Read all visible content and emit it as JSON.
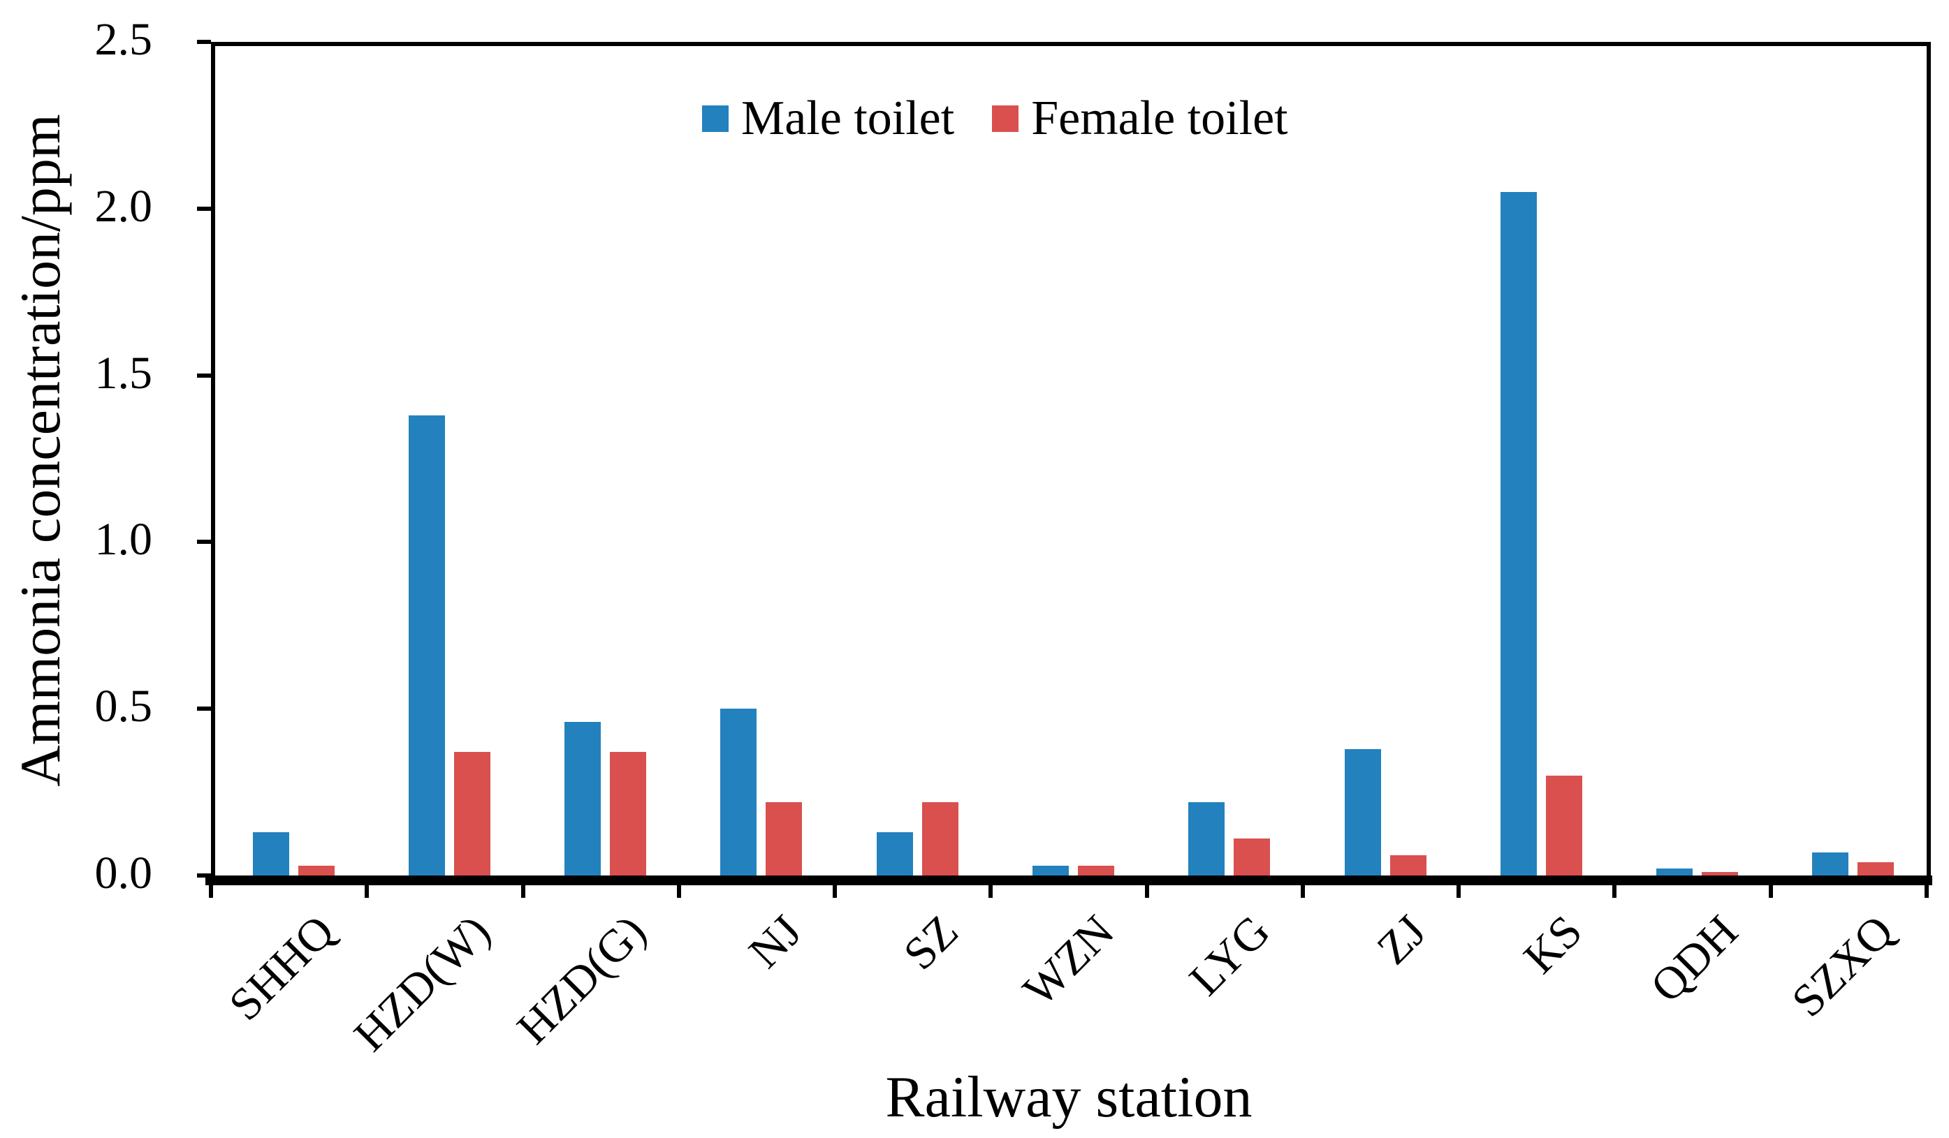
{
  "chart_data": {
    "type": "bar",
    "title": "",
    "xlabel": "Railway station",
    "ylabel": "Ammonia concentration/ppm",
    "categories": [
      "SHHQ",
      "HZD(W)",
      "HZD(G)",
      "NJ",
      "SZ",
      "WZN",
      "LYG",
      "ZJ",
      "KS",
      "QDH",
      "SZXQ"
    ],
    "series": [
      {
        "name": "Male toilet",
        "color": "#2381be",
        "values": [
          0.13,
          1.38,
          0.46,
          0.5,
          0.13,
          0.03,
          0.22,
          0.38,
          2.05,
          0.02,
          0.07
        ]
      },
      {
        "name": "Female toilet",
        "color": "#d9504f",
        "values": [
          0.03,
          0.37,
          0.37,
          0.22,
          0.22,
          0.03,
          0.11,
          0.06,
          0.3,
          0.01,
          0.04
        ]
      }
    ],
    "ylim": [
      0,
      2.5
    ],
    "ytick_labels": [
      "0.0",
      "0.5",
      "1.0",
      "1.5",
      "2.0",
      "2.5"
    ],
    "grid": false,
    "legend_position": "top-center",
    "axis_color": "#000000",
    "background_color": "#ffffff"
  }
}
